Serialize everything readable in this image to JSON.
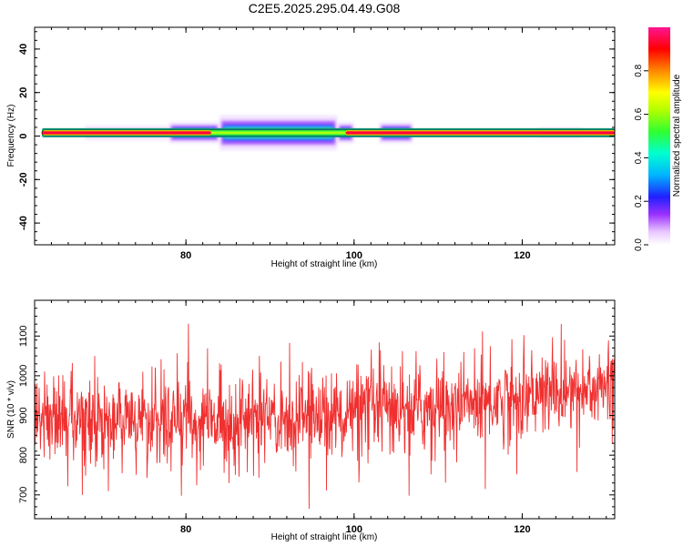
{
  "title": "C2E5.2025.295.04.49.G08",
  "chart_data": [
    {
      "type": "heatmap",
      "xlabel": "Height of straight line (km)",
      "ylabel": "Frequency (Hz)",
      "xlim": [
        62,
        131
      ],
      "ylim": [
        -50,
        50
      ],
      "xticks": [
        80,
        100,
        120
      ],
      "yticks": [
        40,
        20,
        0,
        -20,
        -40
      ],
      "colorbar": {
        "label": "Normalized spectral amplitude",
        "range": [
          0,
          1
        ],
        "ticks": [
          "0.0",
          "0.2",
          "0.4",
          "0.6",
          "0.8"
        ]
      },
      "band_center_hz": 1.5,
      "bright_segments": [
        {
          "x": [
            62,
            83
          ],
          "amp": 0.95
        },
        {
          "x": [
            83,
            99
          ],
          "amp": 0.55
        },
        {
          "x": [
            99,
            131
          ],
          "amp": 0.95
        }
      ],
      "halo_segments": [
        {
          "x": [
            68,
            78
          ],
          "spread_hz": 2
        },
        {
          "x": [
            78,
            84
          ],
          "spread_hz": 3
        },
        {
          "x": [
            84,
            98
          ],
          "spread_hz": 5
        },
        {
          "x": [
            98,
            100
          ],
          "spread_hz": 3
        },
        {
          "x": [
            103,
            107
          ],
          "spread_hz": 3
        },
        {
          "x": [
            122,
            127
          ],
          "spread_hz": 1.5
        }
      ]
    },
    {
      "type": "line",
      "xlabel": "Height of straight line (km)",
      "ylabel": "SNR (10 * v/v)",
      "xlim": [
        62,
        131
      ],
      "ylim": [
        640,
        1190
      ],
      "xticks": [
        80,
        100,
        120
      ],
      "yticks": [
        700,
        800,
        900,
        1000,
        1100
      ],
      "color": "#f03030",
      "trend": [
        {
          "x": 62,
          "mean": 890
        },
        {
          "x": 85,
          "mean": 885
        },
        {
          "x": 110,
          "mean": 920
        },
        {
          "x": 131,
          "mean": 975
        }
      ],
      "noise_std": 55,
      "samples": 1400
    }
  ]
}
